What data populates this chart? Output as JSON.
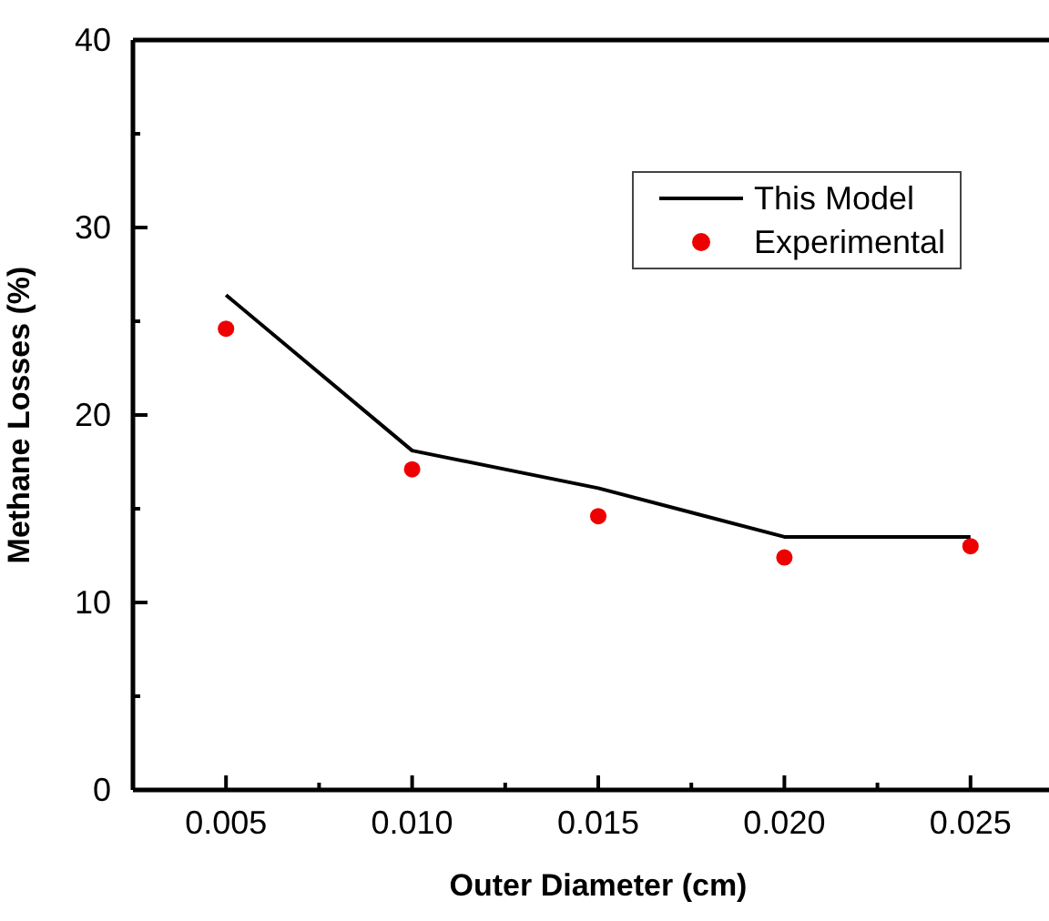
{
  "chart_data": {
    "type": "line",
    "xlabel": "Outer Diameter (cm)",
    "ylabel": "Methane Losses (%)",
    "x": [
      0.005,
      0.01,
      0.015,
      0.02,
      0.025
    ],
    "series": [
      {
        "name": "This Model",
        "color": "#000000",
        "marker": "none",
        "values": [
          26.4,
          18.1,
          16.1,
          13.5,
          13.5
        ]
      },
      {
        "name": "Experimental",
        "type": "scatter",
        "color": "#ee0000",
        "marker": "circle",
        "values": [
          24.6,
          17.1,
          14.6,
          12.4,
          13.0
        ]
      }
    ],
    "xlim": [
      0.0025,
      0.0275
    ],
    "xticks": [
      {
        "value": 0.005,
        "label": "0.005"
      },
      {
        "value": 0.0075,
        "label": null
      },
      {
        "value": 0.01,
        "label": "0.010"
      },
      {
        "value": 0.0125,
        "label": null
      },
      {
        "value": 0.015,
        "label": "0.015"
      },
      {
        "value": 0.0175,
        "label": null
      },
      {
        "value": 0.02,
        "label": "0.020"
      },
      {
        "value": 0.0225,
        "label": null
      },
      {
        "value": 0.025,
        "label": "0.025"
      }
    ],
    "ylim": [
      0,
      40
    ],
    "yticks": [
      0,
      {
        "value": 5,
        "label": null
      },
      10,
      {
        "value": 15,
        "label": null
      },
      20,
      {
        "value": 25,
        "label": null
      },
      30,
      {
        "value": 35,
        "label": null
      },
      40
    ],
    "grid": false,
    "legend": "top right"
  }
}
